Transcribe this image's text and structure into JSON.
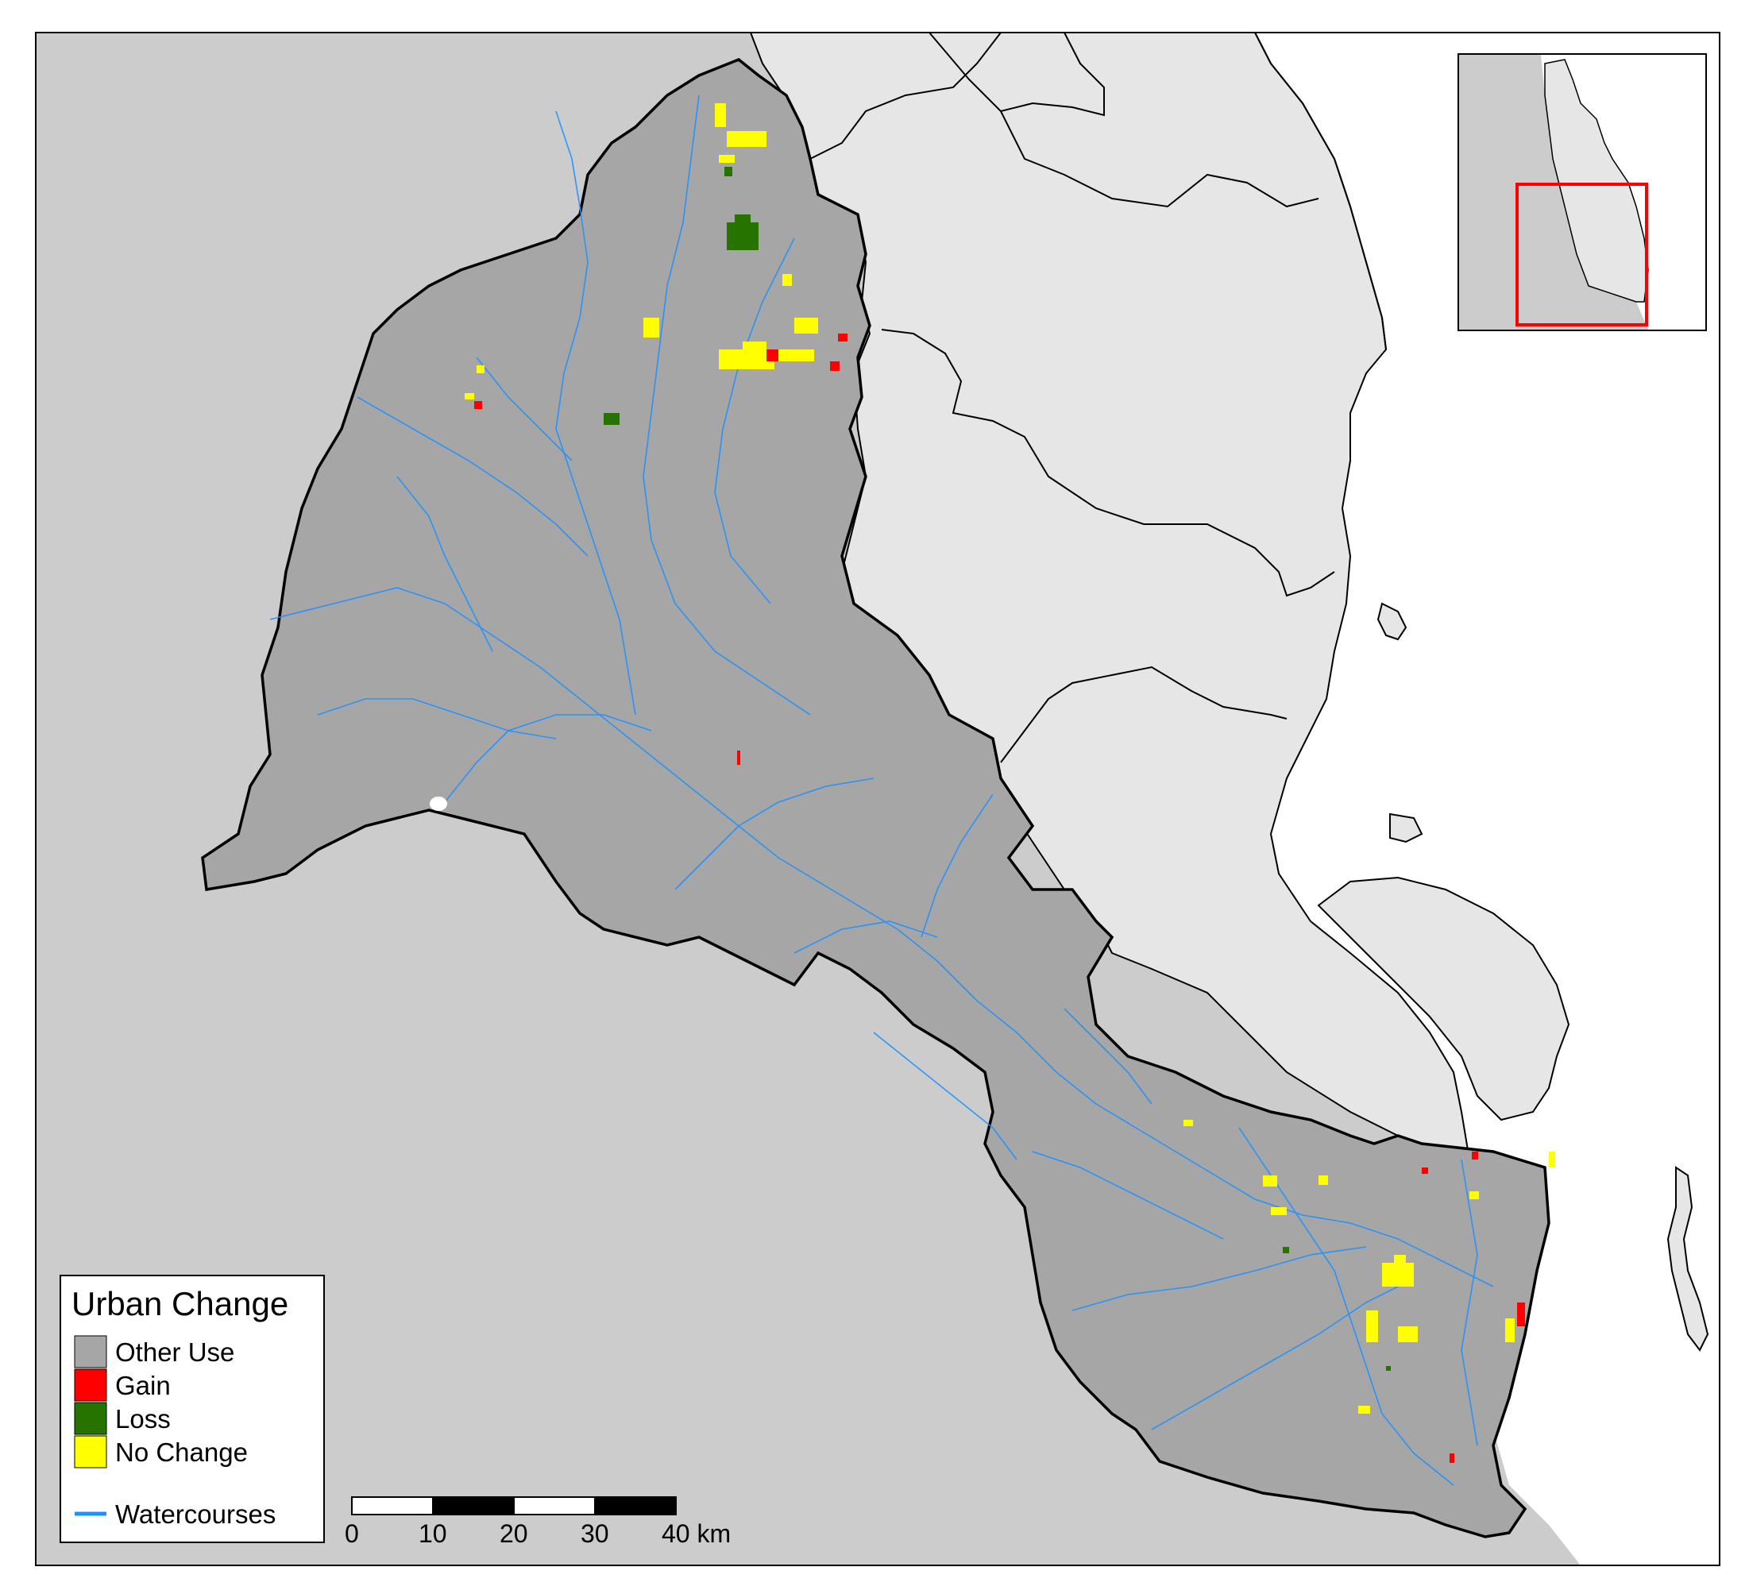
{
  "legend": {
    "title": "Urban Change",
    "items": [
      {
        "label": "Other Use",
        "color": "#a6a6a6"
      },
      {
        "label": "Gain",
        "color": "#ff0000"
      },
      {
        "label": "Loss",
        "color": "#267300"
      },
      {
        "label": "No Change",
        "color": "#ffff00"
      }
    ],
    "line_item": {
      "label": "Watercourses",
      "color": "#1e90ff"
    }
  },
  "scale_bar": {
    "ticks": [
      "0",
      "10",
      "20",
      "30",
      "40 km"
    ]
  },
  "colors": {
    "catchment_fill": "#a6a6a6",
    "outside_fill": "#cccccc",
    "neighbor_fill": "#e6e6e6",
    "sea": "#ffffff",
    "inset_extent": "#ff0000",
    "watercourse": "#1e90ff"
  },
  "inset_map": {
    "description_icon": "locator-map-icon"
  }
}
